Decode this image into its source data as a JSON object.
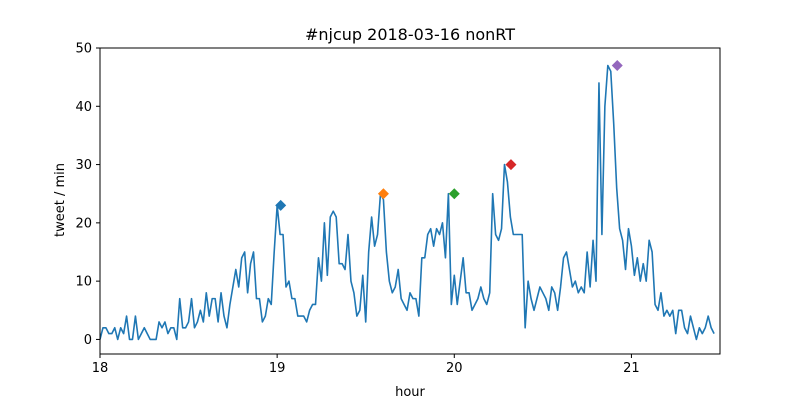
{
  "chart_data": {
    "type": "line",
    "title": "#njcup 2018-03-16 nonRT",
    "xlabel": "hour",
    "ylabel": "tweet / min",
    "xlim": [
      18,
      21.5
    ],
    "ylim": [
      -2.5,
      50
    ],
    "xticks": [
      18,
      19,
      20,
      21
    ],
    "yticks": [
      0,
      10,
      20,
      30,
      40,
      50
    ],
    "grid": false,
    "line_color": "#1f77b4",
    "series": [
      {
        "x_start_hour": 18.0,
        "x_step_hour": 0.016667,
        "values": [
          0,
          2,
          2,
          1,
          1,
          2,
          0,
          2,
          1,
          4,
          0,
          0,
          4,
          0,
          1,
          2,
          1,
          0,
          0,
          0,
          3,
          2,
          3,
          1,
          2,
          2,
          0,
          7,
          2,
          2,
          3,
          7,
          2,
          3,
          5,
          3,
          8,
          4,
          7,
          7,
          3,
          8,
          4,
          2,
          6,
          9,
          12,
          9,
          14,
          15,
          8,
          13,
          15,
          7,
          7,
          3,
          4,
          7,
          6,
          15,
          23,
          18,
          18,
          9,
          10,
          7,
          7,
          4,
          4,
          4,
          3,
          5,
          6,
          6,
          14,
          10,
          20,
          11,
          21,
          22,
          21,
          13,
          13,
          12,
          18,
          10,
          8,
          4,
          5,
          11,
          3,
          15,
          21,
          16,
          18,
          25,
          24,
          15,
          10,
          8,
          9,
          12,
          7,
          6,
          5,
          8,
          7,
          7,
          4,
          14,
          14,
          18,
          19,
          16,
          19,
          18,
          20,
          14,
          25,
          6,
          11,
          6,
          10,
          14,
          8,
          8,
          5,
          6,
          7,
          9,
          7,
          6,
          8,
          25,
          18,
          17,
          19,
          30,
          27,
          21,
          18,
          18,
          18,
          18,
          2,
          10,
          7,
          5,
          7,
          9,
          8,
          7,
          5,
          9,
          8,
          5,
          9,
          14,
          15,
          12,
          9,
          10,
          8,
          9,
          8,
          15,
          9,
          17,
          10,
          44,
          18,
          40,
          47,
          46,
          37,
          26,
          19,
          17,
          12,
          19,
          16,
          11,
          14,
          10,
          13,
          10,
          17,
          15,
          6,
          5,
          8,
          4,
          5,
          4,
          5,
          1,
          5,
          5,
          2,
          1,
          4,
          2,
          0,
          2,
          1,
          2,
          4,
          2,
          1
        ]
      }
    ],
    "markers": [
      {
        "x": 19.02,
        "y": 23,
        "color": "#1f77b4"
      },
      {
        "x": 19.6,
        "y": 25,
        "color": "#ff7f0e"
      },
      {
        "x": 20.0,
        "y": 25,
        "color": "#2ca02c"
      },
      {
        "x": 20.32,
        "y": 30,
        "color": "#d62728"
      },
      {
        "x": 20.92,
        "y": 47,
        "color": "#9467bd"
      }
    ]
  }
}
